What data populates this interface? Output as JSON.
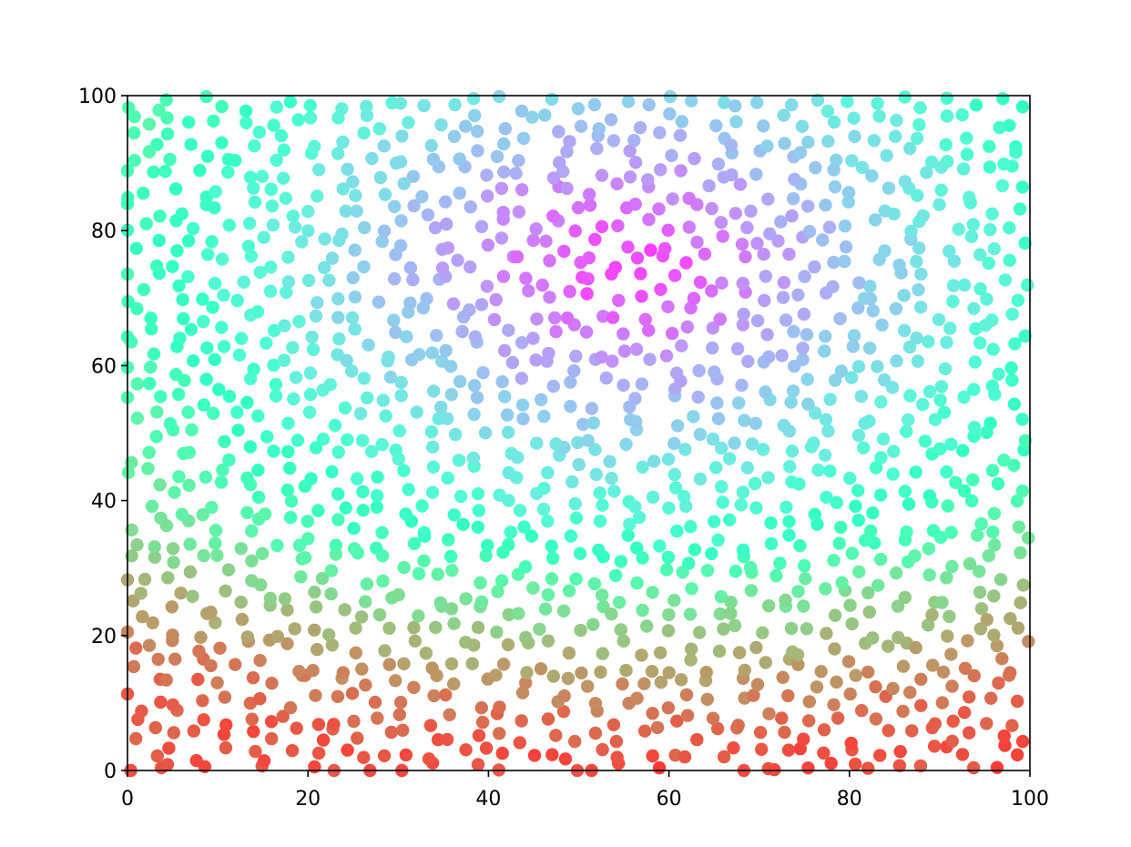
{
  "chart_data": {
    "type": "scatter",
    "title": "",
    "xlabel": "",
    "ylabel": "",
    "xlim": [
      0,
      100
    ],
    "ylim": [
      0,
      100
    ],
    "xticks": [
      "0",
      "20",
      "40",
      "60",
      "80",
      "100"
    ],
    "yticks": [
      "0",
      "20",
      "40",
      "60",
      "80",
      "100"
    ],
    "grid": false,
    "legend": "none",
    "colormap": "rainbow",
    "color_range": [
      0.0,
      1.0
    ],
    "marker": "filled circle",
    "alpha": 0.8,
    "point_count": 1200,
    "approx_point_spacing": 2.6,
    "color_field": {
      "description": "color value is lowest (red) near the bottom edge and highest (violet) in a blob near x=55, y=75",
      "low_color_region": "bottom (y near 0)",
      "high_color_center": [
        55,
        75
      ],
      "mid_color_regions": [
        "left edge",
        "right edge",
        "y near 40"
      ]
    },
    "color_stops": [
      "#ff0000",
      "#ff7f40",
      "#ffc07f",
      "#c0ffbf",
      "#80ffd2",
      "#40c0f0",
      "#8040ff"
    ]
  }
}
